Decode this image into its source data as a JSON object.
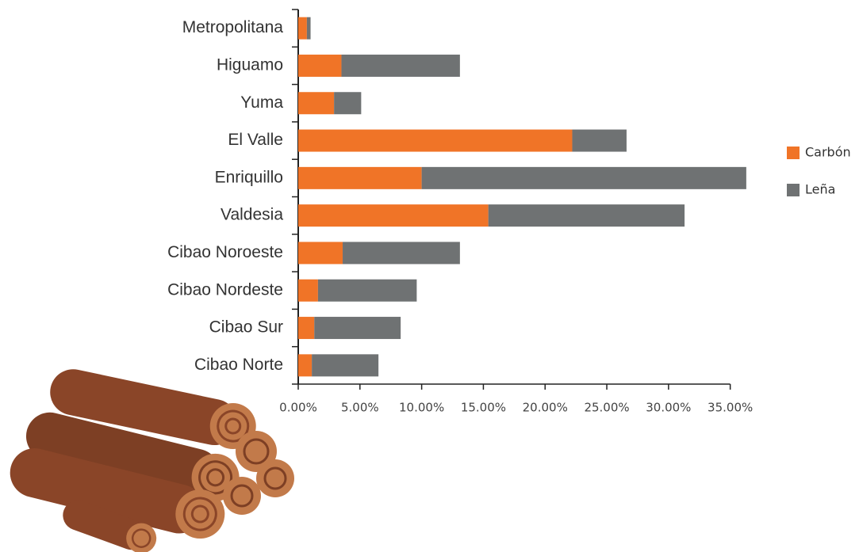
{
  "chart_data": {
    "type": "stacked-bar-horizontal",
    "categories": [
      "Metropolitana",
      "Higuamo",
      "Yuma",
      "El Valle",
      "Enriquillo",
      "Valdesia",
      "Cibao Noroeste",
      "Cibao Nordeste",
      "Cibao Sur",
      "Cibao Norte"
    ],
    "series": [
      {
        "name": "Carbón",
        "color": "#f07427",
        "values": [
          0.7,
          3.5,
          2.9,
          22.2,
          10.0,
          15.4,
          3.6,
          1.6,
          1.3,
          1.1
        ]
      },
      {
        "name": "Leña",
        "color": "#6f7273",
        "values": [
          0.3,
          9.6,
          2.2,
          4.4,
          26.3,
          15.9,
          9.5,
          8.0,
          7.0,
          5.4
        ]
      }
    ],
    "xlim": [
      0,
      36.5
    ],
    "xticks": [
      {
        "value": 0,
        "label": "0.00%"
      },
      {
        "value": 5,
        "label": "5.00%"
      },
      {
        "value": 10,
        "label": "10.00%"
      },
      {
        "value": 15,
        "label": "15.00%"
      },
      {
        "value": 20,
        "label": "20.00%"
      },
      {
        "value": 25,
        "label": "25.00%"
      },
      {
        "value": 30,
        "label": "30.00%"
      },
      {
        "value": 35,
        "label": "35.00%"
      }
    ],
    "legend": "right"
  }
}
